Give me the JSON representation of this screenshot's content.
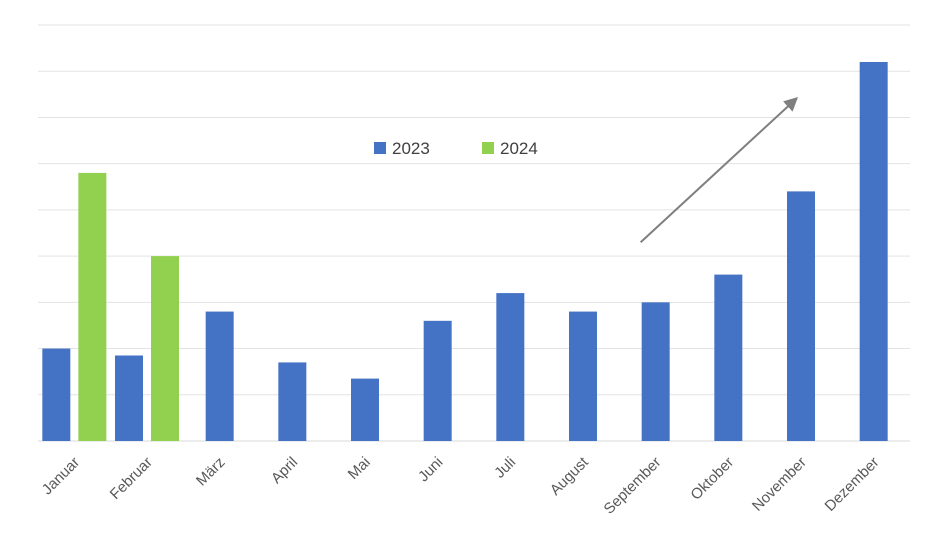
{
  "chart_data": {
    "type": "bar",
    "categories": [
      "Januar",
      "Februar",
      "März",
      "April",
      "Mai",
      "Juni",
      "Juli",
      "August",
      "September",
      "Oktober",
      "November",
      "Dezember"
    ],
    "series": [
      {
        "name": "2023",
        "color": "#4472C4",
        "values": [
          2.0,
          1.85,
          2.8,
          1.7,
          1.35,
          2.6,
          3.2,
          2.8,
          3.0,
          3.6,
          5.4,
          8.2
        ]
      },
      {
        "name": "2024",
        "color": "#92D050",
        "values": [
          5.8,
          4.0,
          null,
          null,
          null,
          null,
          null,
          null,
          null,
          null,
          null,
          null
        ]
      }
    ],
    "ylim": [
      0,
      9
    ],
    "grid": true,
    "legend_position": "top-center",
    "annotation": {
      "type": "trend-arrow",
      "color": "#7F7F7F",
      "from": {
        "category": "September",
        "y": 4.3
      },
      "to": {
        "category": "November",
        "y": 7.4
      }
    },
    "title": "",
    "xlabel": "",
    "ylabel": ""
  }
}
